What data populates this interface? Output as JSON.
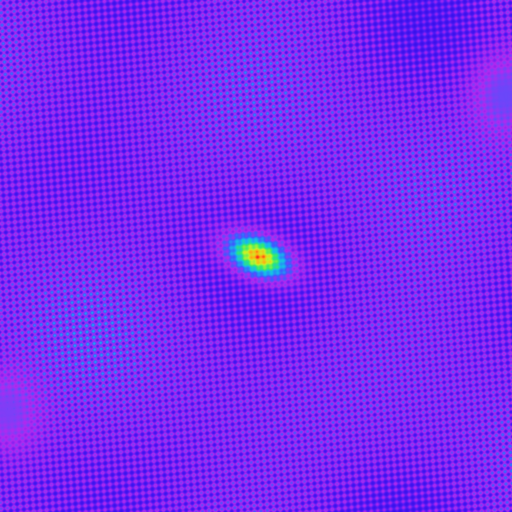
{
  "image": {
    "kind": "false-color interference pattern",
    "colormap": [
      "#2f10e6",
      "#6a1cf0",
      "#c030f0",
      "#1a8cff",
      "#00e0e0",
      "#40f060",
      "#f0f020",
      "#ff2020"
    ],
    "background_color": "#3a18f0",
    "stripe_color": "#c42cf2",
    "hotspot_colors": [
      "#ff2020",
      "#f0f020",
      "#40f060",
      "#00e0e0"
    ]
  }
}
